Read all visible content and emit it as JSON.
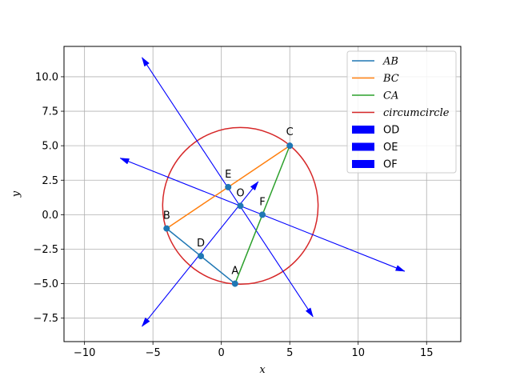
{
  "chart_data": {
    "type": "line",
    "title": "",
    "xlabel": "x",
    "ylabel": "y",
    "xlim": [
      -11.5,
      17.5
    ],
    "ylim": [
      -9.2,
      12.2
    ],
    "grid": true,
    "legend_position": "top-right",
    "x_ticks": [
      {
        "value": -10,
        "label": "−10"
      },
      {
        "value": -5,
        "label": "−5"
      },
      {
        "value": 0,
        "label": "0"
      },
      {
        "value": 5,
        "label": "5"
      },
      {
        "value": 10,
        "label": "10"
      },
      {
        "value": 15,
        "label": "15"
      }
    ],
    "y_ticks": [
      {
        "value": -7.5,
        "label": "−7.5"
      },
      {
        "value": -5.0,
        "label": "−5.0"
      },
      {
        "value": -2.5,
        "label": "−2.5"
      },
      {
        "value": 0.0,
        "label": "0.0"
      },
      {
        "value": 2.5,
        "label": "2.5"
      },
      {
        "value": 5.0,
        "label": "5.0"
      },
      {
        "value": 7.5,
        "label": "7.5"
      },
      {
        "value": 10.0,
        "label": "10.0"
      }
    ],
    "points": [
      {
        "name": "A",
        "x": 1,
        "y": -5
      },
      {
        "name": "B",
        "x": -4,
        "y": -1
      },
      {
        "name": "C",
        "x": 5,
        "y": 5
      },
      {
        "name": "D",
        "x": -1.5,
        "y": -3
      },
      {
        "name": "E",
        "x": 0.5,
        "y": 2
      },
      {
        "name": "F",
        "x": 3,
        "y": 0
      },
      {
        "name": "O",
        "x": 1.39,
        "y": 0.64
      }
    ],
    "segments": [
      {
        "name": "AB",
        "from": [
          1,
          -5
        ],
        "to": [
          -4,
          -1
        ],
        "color": "#1f77b4"
      },
      {
        "name": "BC",
        "from": [
          -4,
          -1
        ],
        "to": [
          5,
          5
        ],
        "color": "#ff7f0e"
      },
      {
        "name": "CA",
        "from": [
          5,
          5
        ],
        "to": [
          1,
          -5
        ],
        "color": "#2ca02c"
      }
    ],
    "circle": {
      "name": "circumcircle",
      "center": [
        1.39,
        0.64
      ],
      "radius": 5.68,
      "color": "#d62728"
    },
    "arrows": [
      {
        "name": "OD",
        "from": [
          -5.8,
          -8.1
        ],
        "to": [
          2.7,
          2.4
        ],
        "color": "#0000ff"
      },
      {
        "name": "OE",
        "from": [
          -5.8,
          11.4
        ],
        "to": [
          6.7,
          -7.4
        ],
        "color": "#0000ff"
      },
      {
        "name": "OF",
        "from": [
          -7.4,
          4.1
        ],
        "to": [
          13.4,
          -4.1
        ],
        "color": "#0000ff"
      }
    ],
    "legend": [
      {
        "label": "AB",
        "kind": "line",
        "color": "#1f77b4",
        "math": true
      },
      {
        "label": "BC",
        "kind": "line",
        "color": "#ff7f0e",
        "math": true
      },
      {
        "label": "CA",
        "kind": "line",
        "color": "#2ca02c",
        "math": true
      },
      {
        "label": "circumcircle",
        "kind": "line",
        "color": "#d62728",
        "math": true
      },
      {
        "label": "OD",
        "kind": "patch",
        "color": "#0000ff",
        "math": false
      },
      {
        "label": "OE",
        "kind": "patch",
        "color": "#0000ff",
        "math": false
      },
      {
        "label": "OF",
        "kind": "patch",
        "color": "#0000ff",
        "math": false
      }
    ]
  }
}
